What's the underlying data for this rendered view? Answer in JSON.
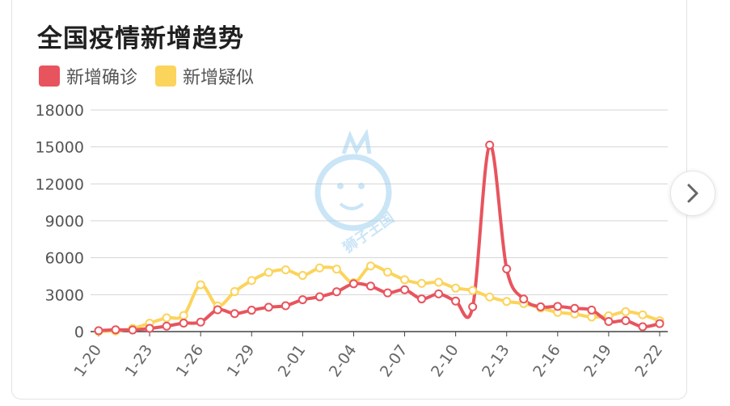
{
  "title": "全国疫情新增趋势",
  "legend": [
    {
      "label": "新增确诊",
      "color": "#e8545e"
    },
    {
      "label": "新增疑似",
      "color": "#fbd45c"
    }
  ],
  "watermark_text": "狮子王国",
  "next_icon": "chevron-right-icon",
  "chart_data": {
    "type": "line",
    "title": "全国疫情新增趋势",
    "ylim": [
      0,
      18000
    ],
    "yticks": [
      0,
      3000,
      6000,
      9000,
      12000,
      15000,
      18000
    ],
    "grid": true,
    "legend_position": "top-left",
    "x": [
      "1-20",
      "1-21",
      "1-22",
      "1-23",
      "1-24",
      "1-25",
      "1-26",
      "1-27",
      "1-28",
      "1-29",
      "1-30",
      "1-31",
      "2-01",
      "2-02",
      "2-03",
      "2-04",
      "2-05",
      "2-06",
      "2-07",
      "2-08",
      "2-09",
      "2-10",
      "2-11",
      "2-12",
      "2-13",
      "2-14",
      "2-15",
      "2-16",
      "2-17",
      "2-18",
      "2-19",
      "2-20",
      "2-21",
      "2-22"
    ],
    "xtick_labels": [
      "1-20",
      "1-23",
      "1-26",
      "1-29",
      "2-01",
      "2-04",
      "2-07",
      "2-10",
      "2-13",
      "2-16",
      "2-19",
      "2-22"
    ],
    "series": [
      {
        "name": "新增确诊",
        "color": "#e8545e",
        "values": [
          77,
          149,
          131,
          259,
          444,
          688,
          769,
          1771,
          1459,
          1737,
          1982,
          2102,
          2590,
          2829,
          3235,
          3887,
          3694,
          3143,
          3399,
          2656,
          3062,
          2478,
          2015,
          15152,
          5090,
          2641,
          2009,
          2048,
          1886,
          1749,
          820,
          889,
          397,
          648
        ]
      },
      {
        "name": "新增疑似",
        "color": "#fbd45c",
        "values": [
          27,
          53,
          257,
          680,
          1118,
          1309,
          3806,
          2077,
          3248,
          4148,
          4812,
          5019,
          4562,
          5173,
          5072,
          3971,
          5328,
          4833,
          4214,
          3916,
          4008,
          3536,
          3342,
          2807,
          2450,
          2277,
          1918,
          1563,
          1432,
          1185,
          1277,
          1614,
          1361,
          882
        ]
      }
    ]
  }
}
